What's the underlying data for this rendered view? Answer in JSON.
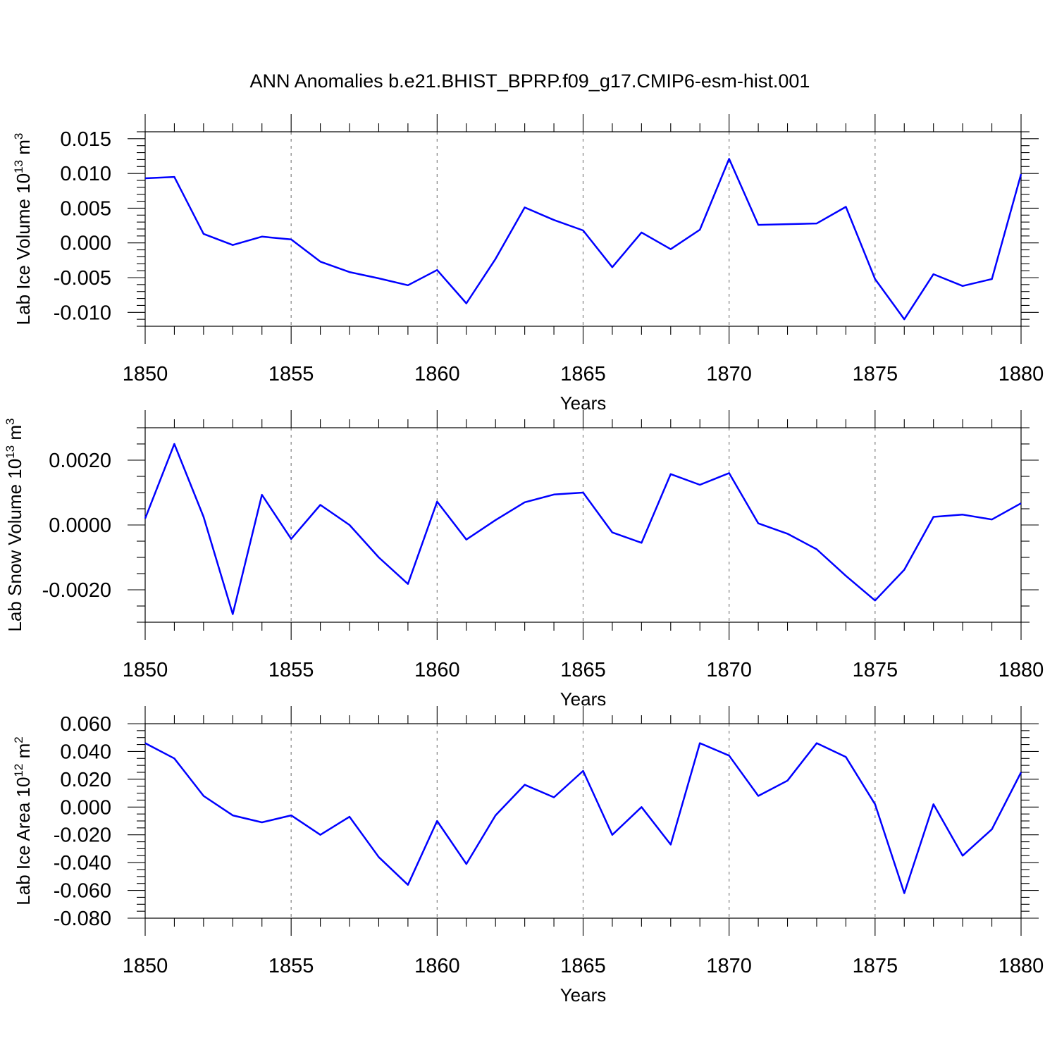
{
  "title": "ANN Anomalies b.e21.BHIST_BPRP.f09_g17.CMIP6-esm-hist.001",
  "colors": {
    "line": "#0000ff",
    "grid": "#808080",
    "axis": "#000000"
  },
  "chart_data": [
    {
      "type": "line",
      "ylabel": "Lab Ice Volume 10",
      "ylabel_exp": "13",
      "ylabel_unit": " m",
      "ylabel_unit_exp": "3",
      "xlabel": "Years",
      "xlim": [
        1850,
        1880
      ],
      "ylim": [
        -0.012,
        0.016
      ],
      "yticks": [
        -0.01,
        -0.005,
        0.0,
        0.005,
        0.01,
        0.015
      ],
      "ytick_labels": [
        "-0.010",
        "-0.005",
        "0.000",
        "0.005",
        "0.010",
        "0.015"
      ],
      "yminor_step": 0.001,
      "xticks": [
        1850,
        1855,
        1860,
        1865,
        1870,
        1875,
        1880
      ],
      "xtick_labels": [
        "1850",
        "1855",
        "1860",
        "1865",
        "1870",
        "1875",
        "1880"
      ],
      "grid_x": [
        1855,
        1860,
        1865,
        1870,
        1875
      ],
      "x": [
        1850,
        1851,
        1852,
        1853,
        1854,
        1855,
        1856,
        1857,
        1858,
        1859,
        1860,
        1861,
        1862,
        1863,
        1864,
        1865,
        1866,
        1867,
        1868,
        1869,
        1870,
        1871,
        1872,
        1873,
        1874,
        1875,
        1876,
        1877,
        1878,
        1879,
        1880
      ],
      "values": [
        0.0093,
        0.0095,
        0.0013,
        -0.0003,
        0.0009,
        0.0005,
        -0.0027,
        -0.0042,
        -0.0051,
        -0.0061,
        -0.0039,
        -0.0087,
        -0.0023,
        0.0051,
        0.0033,
        0.0018,
        -0.0035,
        0.0015,
        -0.0009,
        0.0019,
        0.0121,
        0.0026,
        0.0027,
        0.0028,
        0.0052,
        -0.0052,
        -0.011,
        -0.0045,
        -0.0062,
        -0.0052,
        0.0099
      ]
    },
    {
      "type": "line",
      "ylabel": "Lab Snow Volume 10",
      "ylabel_exp": "13",
      "ylabel_unit": " m",
      "ylabel_unit_exp": "3",
      "xlabel": "Years",
      "xlim": [
        1850,
        1880
      ],
      "ylim": [
        -0.003,
        0.003
      ],
      "yticks": [
        -0.002,
        0.0,
        0.002
      ],
      "ytick_labels": [
        "-0.0020",
        "0.0000",
        "0.0020"
      ],
      "yminor_step": 0.0005,
      "xticks": [
        1850,
        1855,
        1860,
        1865,
        1870,
        1875,
        1880
      ],
      "xtick_labels": [
        "1850",
        "1855",
        "1860",
        "1865",
        "1870",
        "1875",
        "1880"
      ],
      "grid_x": [
        1855,
        1860,
        1865,
        1870,
        1875
      ],
      "x": [
        1850,
        1851,
        1852,
        1853,
        1854,
        1855,
        1856,
        1857,
        1858,
        1859,
        1860,
        1861,
        1862,
        1863,
        1864,
        1865,
        1866,
        1867,
        1868,
        1869,
        1870,
        1871,
        1872,
        1873,
        1874,
        1875,
        1876,
        1877,
        1878,
        1879,
        1880
      ],
      "values": [
        0.0002,
        0.0025,
        0.00025,
        -0.00275,
        0.00093,
        -0.00043,
        0.00062,
        0.0,
        -0.001,
        -0.00182,
        0.00072,
        -0.00045,
        0.00015,
        0.0007,
        0.00094,
        0.001,
        -0.00023,
        -0.00055,
        0.00157,
        0.00124,
        0.0016,
        5e-05,
        -0.00027,
        -0.00075,
        -0.00157,
        -0.00233,
        -0.00138,
        0.00025,
        0.00032,
        0.00017,
        0.00067
      ]
    },
    {
      "type": "line",
      "ylabel": "Lab Ice Area 10",
      "ylabel_exp": "12",
      "ylabel_unit": " m",
      "ylabel_unit_exp": "2",
      "xlabel": "Years",
      "xlim": [
        1850,
        1880
      ],
      "ylim": [
        -0.08,
        0.06
      ],
      "yticks": [
        -0.08,
        -0.06,
        -0.04,
        -0.02,
        0.0,
        0.02,
        0.04,
        0.06
      ],
      "ytick_labels": [
        "-0.080",
        "-0.060",
        "-0.040",
        "-0.020",
        "0.000",
        "0.020",
        "0.040",
        "0.060"
      ],
      "yminor_step": 0.005,
      "xticks": [
        1850,
        1855,
        1860,
        1865,
        1870,
        1875,
        1880
      ],
      "xtick_labels": [
        "1850",
        "1855",
        "1860",
        "1865",
        "1870",
        "1875",
        "1880"
      ],
      "grid_x": [
        1855,
        1860,
        1865,
        1870,
        1875
      ],
      "x": [
        1850,
        1851,
        1852,
        1853,
        1854,
        1855,
        1856,
        1857,
        1858,
        1859,
        1860,
        1861,
        1862,
        1863,
        1864,
        1865,
        1866,
        1867,
        1868,
        1869,
        1870,
        1871,
        1872,
        1873,
        1874,
        1875,
        1876,
        1877,
        1878,
        1879,
        1880
      ],
      "values": [
        0.046,
        0.035,
        0.008,
        -0.006,
        -0.011,
        -0.006,
        -0.02,
        -0.007,
        -0.036,
        -0.056,
        -0.01,
        -0.041,
        -0.006,
        0.016,
        0.007,
        0.026,
        -0.02,
        0.0,
        -0.027,
        0.046,
        0.037,
        0.008,
        0.019,
        0.046,
        0.036,
        0.002,
        -0.062,
        0.002,
        -0.035,
        -0.016,
        0.025
      ]
    }
  ]
}
